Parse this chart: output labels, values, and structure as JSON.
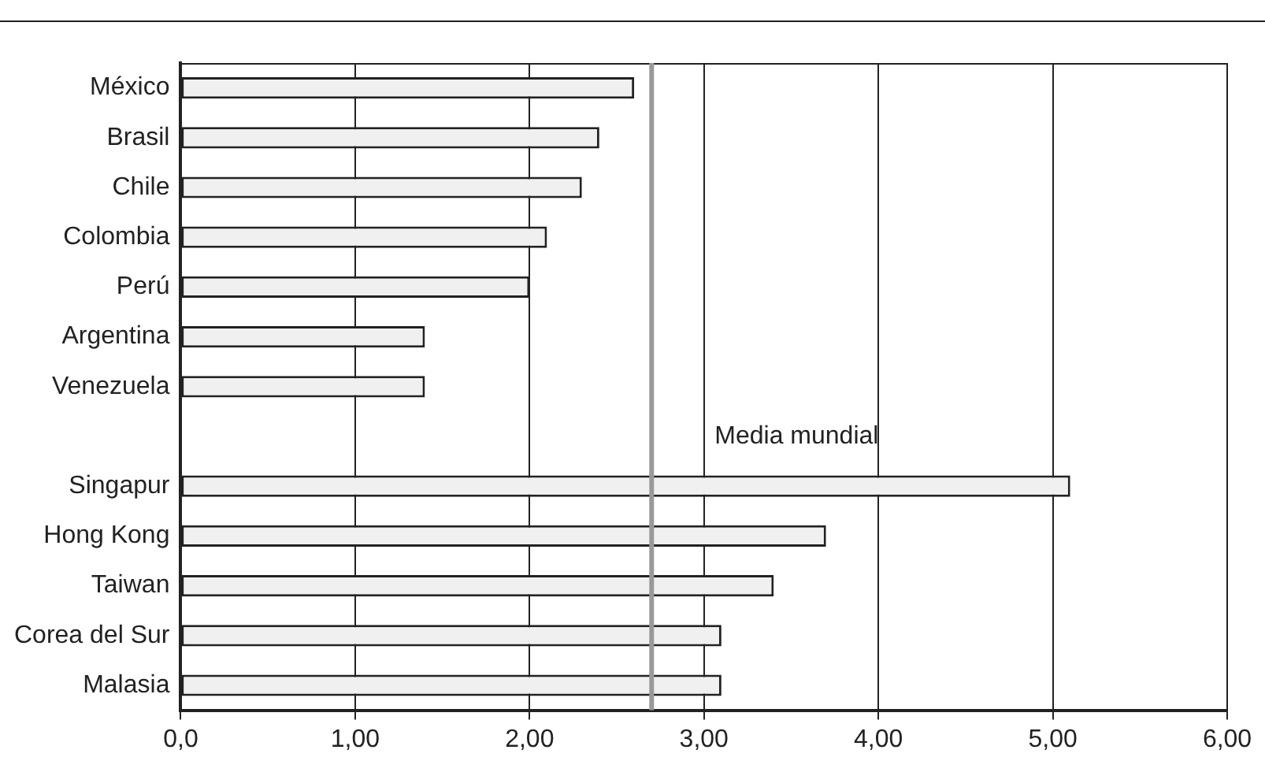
{
  "chart_data": {
    "type": "bar",
    "orientation": "horizontal",
    "categories": [
      "México",
      "Brasil",
      "Chile",
      "Colombia",
      "Perú",
      "Argentina",
      "Venezuela",
      null,
      "Singapur",
      "Hong Kong",
      "Taiwan",
      "Corea del Sur",
      "Malasia"
    ],
    "values": [
      2.6,
      2.4,
      2.3,
      2.1,
      2.0,
      1.4,
      1.4,
      null,
      5.1,
      3.7,
      3.4,
      3.1,
      3.1
    ],
    "color": "#f0f0f0",
    "xlim": [
      0,
      6
    ],
    "xticks": [
      {
        "value": 0,
        "label": "0,0"
      },
      {
        "value": 1,
        "label": "1,00"
      },
      {
        "value": 2,
        "label": "2,00"
      },
      {
        "value": 3,
        "label": "3,00"
      },
      {
        "value": 4,
        "label": "4,00"
      },
      {
        "value": 5,
        "label": "5,00"
      },
      {
        "value": 6,
        "label": "6,00"
      }
    ],
    "grid": "x",
    "legend": false,
    "ref_lines": [
      {
        "axis": "x",
        "value": 2.7,
        "label": "Media mundial",
        "color": "#999999"
      }
    ]
  }
}
